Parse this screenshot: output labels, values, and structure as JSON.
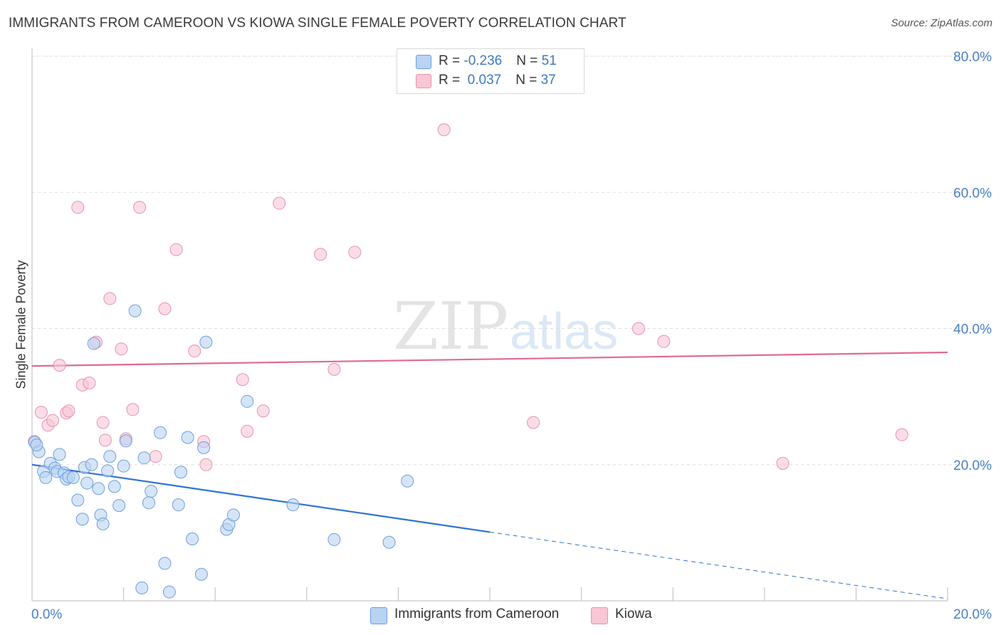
{
  "title": "IMMIGRANTS FROM CAMEROON VS KIOWA SINGLE FEMALE POVERTY CORRELATION CHART",
  "source": "Source: ZipAtlas.com",
  "watermark": {
    "zip": "ZIP",
    "atlas": "atlas"
  },
  "legend": {
    "rows": [
      {
        "r_label": "R = ",
        "r_value": "-0.236",
        "n_label": "N = ",
        "n_value": "51"
      },
      {
        "r_label": "R = ",
        "r_value": " 0.037",
        "n_label": "N = ",
        "n_value": "37"
      }
    ]
  },
  "bottom_legend": [
    "Immigrants from Cameroon",
    "Kiowa"
  ],
  "colors": {
    "blue_fill": "#b9d3f2",
    "blue_stroke": "#6e9fdc",
    "blue_line": "#2f73d0",
    "pink_fill": "#f8c6d5",
    "pink_stroke": "#e893ad",
    "pink_line": "#e06a92",
    "axis_text": "#4a7fc6",
    "grid": "#dddddd"
  },
  "chart_data": {
    "type": "scatter",
    "title": "IMMIGRANTS FROM CAMEROON VS KIOWA SINGLE FEMALE POVERTY CORRELATION CHART",
    "xlabel": "",
    "ylabel": "Single Female Poverty",
    "xlim": [
      0,
      20
    ],
    "ylim": [
      0,
      80
    ],
    "x_tick_labels": [
      "0.0%",
      "20.0%"
    ],
    "y_ticks": [
      20,
      40,
      60,
      80
    ],
    "y_tick_labels": [
      "20.0%",
      "40.0%",
      "60.0%",
      "80.0%"
    ],
    "grid": true,
    "series": [
      {
        "name": "Immigrants from Cameroon",
        "color": "#6e9fdc",
        "r": -0.236,
        "n": 51,
        "trend": {
          "x0": 0,
          "y0": 20.0,
          "x1": 10.0,
          "y1": 10.1,
          "dashed_to_x": 20.0,
          "dashed_to_y": 0.3
        },
        "points": [
          [
            0.06,
            23.3
          ],
          [
            0.15,
            21.9
          ],
          [
            0.25,
            19.0
          ],
          [
            0.3,
            18.1
          ],
          [
            0.4,
            20.2
          ],
          [
            0.5,
            19.5
          ],
          [
            0.55,
            19.0
          ],
          [
            0.6,
            21.5
          ],
          [
            0.7,
            18.8
          ],
          [
            0.75,
            17.9
          ],
          [
            0.8,
            18.2
          ],
          [
            0.9,
            18.1
          ],
          [
            1.0,
            14.8
          ],
          [
            1.1,
            12.0
          ],
          [
            1.15,
            19.6
          ],
          [
            1.2,
            17.3
          ],
          [
            1.3,
            20.0
          ],
          [
            1.35,
            37.8
          ],
          [
            1.45,
            16.5
          ],
          [
            1.5,
            12.6
          ],
          [
            1.55,
            11.3
          ],
          [
            1.65,
            19.1
          ],
          [
            1.7,
            21.2
          ],
          [
            1.8,
            16.8
          ],
          [
            1.9,
            14.0
          ],
          [
            2.0,
            19.8
          ],
          [
            2.05,
            23.5
          ],
          [
            2.25,
            42.6
          ],
          [
            2.4,
            1.9
          ],
          [
            2.45,
            21.0
          ],
          [
            2.55,
            14.4
          ],
          [
            2.6,
            16.1
          ],
          [
            2.8,
            24.7
          ],
          [
            2.9,
            5.5
          ],
          [
            3.0,
            1.3
          ],
          [
            3.2,
            14.1
          ],
          [
            3.25,
            18.9
          ],
          [
            3.4,
            24.0
          ],
          [
            3.5,
            9.1
          ],
          [
            3.7,
            3.9
          ],
          [
            3.75,
            22.5
          ],
          [
            3.8,
            38.0
          ],
          [
            4.25,
            10.5
          ],
          [
            4.3,
            11.2
          ],
          [
            4.4,
            12.6
          ],
          [
            4.7,
            29.3
          ],
          [
            5.7,
            14.1
          ],
          [
            6.6,
            9.0
          ],
          [
            7.8,
            8.6
          ],
          [
            8.2,
            17.6
          ],
          [
            0.1,
            22.9
          ]
        ]
      },
      {
        "name": "Kiowa",
        "color": "#e893ad",
        "r": 0.037,
        "n": 37,
        "trend": {
          "x0": 0,
          "y0": 34.5,
          "x1": 20.0,
          "y1": 36.5
        },
        "points": [
          [
            0.05,
            23.4
          ],
          [
            0.2,
            27.7
          ],
          [
            0.35,
            25.8
          ],
          [
            0.45,
            26.5
          ],
          [
            0.6,
            34.6
          ],
          [
            0.75,
            27.6
          ],
          [
            0.8,
            27.9
          ],
          [
            1.0,
            57.8
          ],
          [
            1.1,
            31.7
          ],
          [
            1.25,
            32.0
          ],
          [
            1.4,
            38.0
          ],
          [
            1.55,
            26.2
          ],
          [
            1.6,
            23.6
          ],
          [
            1.7,
            44.4
          ],
          [
            1.95,
            37.0
          ],
          [
            2.05,
            23.8
          ],
          [
            2.2,
            28.1
          ],
          [
            2.35,
            57.8
          ],
          [
            2.7,
            21.2
          ],
          [
            2.9,
            42.9
          ],
          [
            3.15,
            51.6
          ],
          [
            3.55,
            36.7
          ],
          [
            3.75,
            23.4
          ],
          [
            3.8,
            20.0
          ],
          [
            4.6,
            32.5
          ],
          [
            4.7,
            24.9
          ],
          [
            5.05,
            27.9
          ],
          [
            5.4,
            58.4
          ],
          [
            6.3,
            50.9
          ],
          [
            6.6,
            34.0
          ],
          [
            7.05,
            51.2
          ],
          [
            9.0,
            69.2
          ],
          [
            10.95,
            26.2
          ],
          [
            13.25,
            40.0
          ],
          [
            13.8,
            38.1
          ],
          [
            16.4,
            20.2
          ],
          [
            19.0,
            24.4
          ]
        ]
      }
    ]
  }
}
